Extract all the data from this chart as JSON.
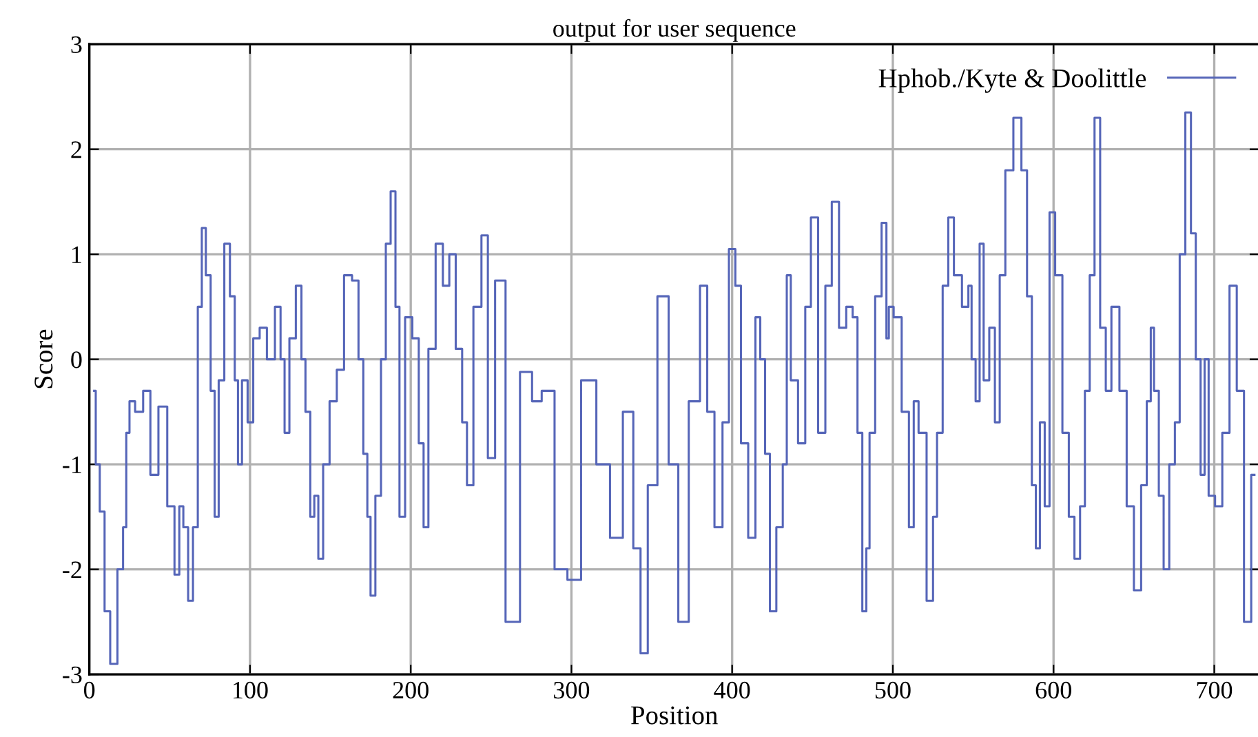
{
  "chart_data": {
    "type": "step",
    "title": "output for user sequence",
    "xlabel": "Position",
    "ylabel": "Score",
    "xlim": [
      0,
      728
    ],
    "ylim": [
      -3,
      3
    ],
    "xticks": [
      0,
      100,
      200,
      300,
      400,
      500,
      600,
      700
    ],
    "yticks": [
      -3,
      -2,
      -1,
      0,
      1,
      2,
      3
    ],
    "grid": true,
    "legend": "top right",
    "series": [
      {
        "name": "Hphob./Kyte & Doolittle",
        "color": "#5565b8",
        "x": [
          3,
          5,
          8,
          11,
          15,
          20,
          22,
          24,
          26,
          31,
          36,
          40,
          46,
          51,
          55,
          57,
          60,
          63,
          66,
          69,
          71,
          74,
          77,
          79,
          82,
          86,
          89,
          92,
          93,
          97,
          100,
          104,
          108,
          113,
          118,
          120,
          123,
          126,
          131,
          133,
          136,
          139,
          141,
          144,
          147,
          152,
          156,
          161,
          166,
          169,
          172,
          174,
          176,
          180,
          183,
          186,
          189,
          192,
          194,
          199,
          203,
          207,
          209,
          213,
          218,
          222,
          226,
          230,
          234,
          236,
          242,
          246,
          250,
          255,
          263,
          273,
          278,
          285,
          294,
          301,
          311,
          320,
          328,
          336,
          341,
          345,
          350,
          357,
          364,
          369,
          377,
          383,
          386,
          392,
          396,
          400,
          404,
          407,
          413,
          416,
          419,
          422,
          425,
          430,
          433,
          435,
          438,
          444,
          447,
          451,
          456,
          460,
          464,
          469,
          473,
          477,
          479,
          483,
          484,
          487,
          491,
          495,
          497,
          498,
          503,
          508,
          512,
          514,
          518,
          524,
          526,
          529,
          533,
          536,
          540,
          546,
          548,
          550,
          553,
          555,
          558,
          562,
          565,
          568,
          572,
          578,
          582,
          585,
          588,
          590,
          593,
          596,
          599,
          603,
          608,
          611,
          615,
          618,
          621,
          624,
          627,
          631,
          634,
          638,
          644,
          647,
          653,
          656,
          660,
          661,
          664,
          667,
          670,
          674,
          677,
          680,
          684,
          687,
          690,
          693,
          695,
          698,
          703,
          707,
          712,
          716,
          721,
          725
        ],
        "values": [
          -0.3,
          -1.0,
          -1.45,
          -2.4,
          -2.9,
          -2.0,
          -1.6,
          -0.7,
          -0.4,
          -0.5,
          -0.3,
          -1.1,
          -0.45,
          -1.4,
          -2.05,
          -1.4,
          -1.6,
          -2.3,
          -1.6,
          0.5,
          1.25,
          0.8,
          -0.3,
          -1.5,
          -0.2,
          1.1,
          0.6,
          -0.2,
          -1.0,
          -0.2,
          -0.6,
          0.2,
          0.3,
          0.0,
          0.5,
          0.0,
          -0.7,
          0.2,
          0.7,
          0.0,
          -0.5,
          -1.5,
          -1.3,
          -1.9,
          -1.0,
          -0.4,
          -0.1,
          0.8,
          0.75,
          0.0,
          -0.9,
          -1.5,
          -2.25,
          -1.3,
          0.0,
          1.1,
          1.6,
          0.5,
          -1.5,
          0.4,
          0.2,
          -0.8,
          -1.6,
          0.1,
          1.1,
          0.7,
          1.0,
          0.1,
          -0.6,
          -1.2,
          0.5,
          1.18,
          -0.94,
          0.75,
          -2.5,
          -0.12,
          -0.4,
          -0.3,
          -2.0,
          -2.1,
          -0.2,
          -1.0,
          -1.7,
          -0.5,
          -1.8,
          -2.8,
          -1.2,
          0.6,
          -1.0,
          -2.5,
          -0.4,
          0.7,
          -0.5,
          -1.6,
          -0.6,
          1.05,
          0.7,
          -0.8,
          -1.7,
          0.4,
          0.0,
          -0.9,
          -2.4,
          -1.6,
          -1.0,
          0.8,
          -0.2,
          -0.8,
          0.5,
          1.35,
          -0.7,
          0.7,
          1.5,
          0.3,
          0.5,
          0.4,
          -0.7,
          -2.4,
          -1.8,
          -0.7,
          0.6,
          1.3,
          0.2,
          0.5,
          0.4,
          -0.5,
          -1.6,
          -0.4,
          -0.7,
          -2.3,
          -1.5,
          -0.7,
          0.7,
          1.35,
          0.8,
          0.5,
          0.7,
          0.0,
          -0.4,
          1.1,
          -0.2,
          0.3,
          -0.6,
          0.8,
          1.8,
          2.3,
          1.8,
          0.6,
          -1.2,
          -1.8,
          -0.6,
          -1.4,
          1.4,
          0.8,
          -0.7,
          -1.5,
          -1.9,
          -1.4,
          -0.3,
          0.8,
          2.3,
          0.3,
          -0.3,
          0.5,
          -0.3,
          -1.4,
          -2.2,
          -1.2,
          -0.4,
          0.3,
          -0.3,
          -1.3,
          -2.0,
          -1.0,
          -0.6,
          1.0,
          2.35,
          1.2,
          0.0,
          -1.1,
          0.0,
          -1.3,
          -1.4,
          -0.7,
          0.7,
          -0.3,
          -2.5,
          -1.1
        ]
      }
    ]
  }
}
